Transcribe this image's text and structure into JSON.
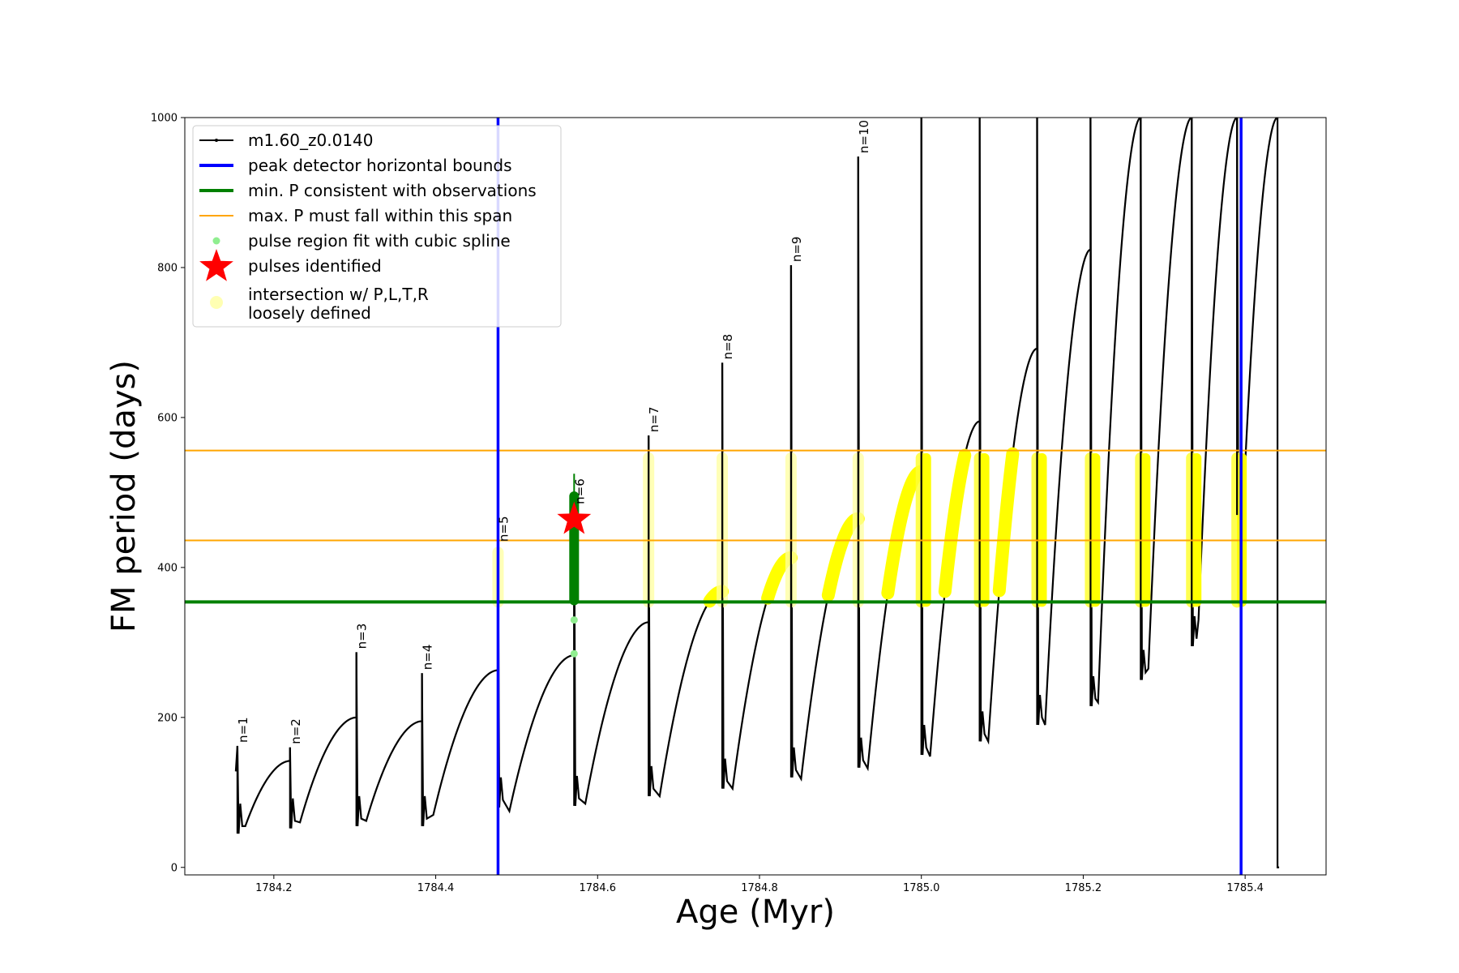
{
  "chart_data": {
    "type": "line",
    "xlabel": "Age (Myr)",
    "ylabel": "FM period (days)",
    "xlim": [
      1784.09,
      1785.5
    ],
    "ylim": [
      -10,
      1000
    ],
    "xticks": [
      1784.2,
      1784.4,
      1784.6,
      1784.8,
      1785.0,
      1785.2,
      1785.4
    ],
    "xtick_labels": [
      "1784.2",
      "1784.4",
      "1784.6",
      "1784.8",
      "1785.0",
      "1785.2",
      "1785.4"
    ],
    "yticks": [
      0,
      200,
      400,
      600,
      800,
      1000
    ],
    "ytick_labels": [
      "0",
      "200",
      "400",
      "600",
      "800",
      "1000"
    ],
    "legend_position": "upper-left",
    "legend": [
      {
        "label": "m1.60_z0.0140",
        "kind": "line-dot",
        "color": "#000000"
      },
      {
        "label": "peak detector horizontal bounds",
        "kind": "line",
        "color": "#0000ff"
      },
      {
        "label": "min. P consistent with observations",
        "kind": "line",
        "color": "#008000"
      },
      {
        "label": "max. P must fall within this span",
        "kind": "line",
        "color": "#ffa500"
      },
      {
        "label": "pulse region fit with cubic spline",
        "kind": "dot",
        "color": "#90ee90"
      },
      {
        "label": "pulses identified",
        "kind": "star",
        "color": "#ff0000"
      },
      {
        "label": "intersection w/ P,L,T,R",
        "label2": "loosely defined",
        "kind": "bigdot",
        "color": "#ffffb3"
      }
    ],
    "vlines": [
      {
        "x": 1784.477,
        "color": "#0000ff"
      },
      {
        "x": 1785.395,
        "color": "#0000ff"
      }
    ],
    "hlines": [
      {
        "y": 354,
        "color": "#008000",
        "width": 4
      },
      {
        "y": 436,
        "color": "#ffa500",
        "width": 2
      },
      {
        "y": 556,
        "color": "#ffa500",
        "width": 2
      }
    ],
    "series": [
      {
        "name": "m1.60_z0.0140",
        "color": "#000000",
        "cycles": [
          {
            "x0": 1784.155,
            "x1": 1784.22,
            "peak": 162,
            "post_drop": 45,
            "post_min": 55,
            "end": 142
          },
          {
            "x0": 1784.22,
            "x1": 1784.302,
            "peak": 160,
            "post_drop": 52,
            "post_min": 60,
            "end": 200
          },
          {
            "x0": 1784.302,
            "x1": 1784.383,
            "peak": 287,
            "post_drop": 55,
            "post_min": 62,
            "end": 195
          },
          {
            "x0": 1784.383,
            "x1": 1784.477,
            "peak": 259,
            "post_drop": 55,
            "post_min": 70,
            "end": 263
          },
          {
            "x0": 1784.477,
            "x1": 1784.571,
            "peak": 420,
            "post_drop": 80,
            "post_min": 75,
            "end": 283
          },
          {
            "x0": 1784.571,
            "x1": 1784.663,
            "peak": 500,
            "post_drop": 82,
            "post_min": 85,
            "end": 327
          },
          {
            "x0": 1784.663,
            "x1": 1784.754,
            "peak": 576,
            "post_drop": 95,
            "post_min": 95,
            "end": 368
          },
          {
            "x0": 1784.754,
            "x1": 1784.839,
            "peak": 673,
            "post_drop": 105,
            "post_min": 105,
            "end": 413
          },
          {
            "x0": 1784.839,
            "x1": 1784.922,
            "peak": 803,
            "post_drop": 120,
            "post_min": 118,
            "end": 465
          },
          {
            "x0": 1784.922,
            "x1": 1785.0,
            "peak": 948,
            "post_drop": 133,
            "post_min": 132,
            "end": 528
          },
          {
            "x0": 1785.0,
            "x1": 1785.072,
            "peak": 1000,
            "post_drop": 150,
            "post_min": 148,
            "end": 595
          },
          {
            "x0": 1785.072,
            "x1": 1785.143,
            "peak": 1000,
            "post_drop": 168,
            "post_min": 168,
            "end": 692
          },
          {
            "x0": 1785.143,
            "x1": 1785.209,
            "peak": 1000,
            "post_drop": 190,
            "post_min": 190,
            "end": 824
          },
          {
            "x0": 1785.209,
            "x1": 1785.271,
            "peak": 1000,
            "post_drop": 215,
            "post_min": 220,
            "end": 1000
          },
          {
            "x0": 1785.271,
            "x1": 1785.334,
            "peak": 1000,
            "post_drop": 250,
            "post_min": 265,
            "end": 1000
          },
          {
            "x0": 1785.334,
            "x1": 1785.39,
            "peak": 1000,
            "post_drop": 295,
            "post_min": 330,
            "end": 1000
          },
          {
            "x0": 1785.39,
            "x1": 1785.44,
            "peak": 1000,
            "post_drop": 470,
            "post_min": 480,
            "end": 1000
          }
        ],
        "final_drop": {
          "x": 1785.44,
          "y": 0
        }
      }
    ],
    "pulse_labels": [
      {
        "text": "n=1",
        "x": 1784.155,
        "y": 162
      },
      {
        "text": "n=2",
        "x": 1784.22,
        "y": 160
      },
      {
        "text": "n=3",
        "x": 1784.302,
        "y": 287
      },
      {
        "text": "n=4",
        "x": 1784.383,
        "y": 259
      },
      {
        "text": "n=5",
        "x": 1784.477,
        "y": 430
      },
      {
        "text": "n=6",
        "x": 1784.571,
        "y": 480
      },
      {
        "text": "n=7",
        "x": 1784.663,
        "y": 576
      },
      {
        "text": "n=8",
        "x": 1784.754,
        "y": 673
      },
      {
        "text": "n=9",
        "x": 1784.839,
        "y": 803
      },
      {
        "text": "n=10",
        "x": 1784.922,
        "y": 948
      }
    ],
    "pulse_identified": {
      "x": 1784.571,
      "y": 464
    },
    "spline_points": [
      {
        "x": 1784.571,
        "y": 330
      },
      {
        "x": 1784.571,
        "y": 285
      }
    ],
    "green_fit": {
      "x": 1784.571,
      "y_min": 356,
      "y_max": 495,
      "whisker_max": 525
    }
  }
}
